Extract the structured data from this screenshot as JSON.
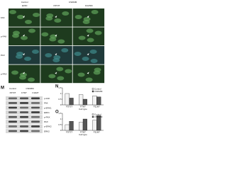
{
  "micro": {
    "groups": [
      "Control",
      "CSDMM"
    ],
    "columns": [
      "E15D",
      "F5T3T",
      "F11P3D"
    ],
    "rows": [
      "FAK",
      "p-FAK",
      "PAX",
      "p-PAX"
    ]
  },
  "blot": {
    "label": "M",
    "groups": [
      "Control",
      "CSDMM"
    ],
    "lanes": [
      "F5T3T",
      "F7M7",
      "F11M7"
    ],
    "rows": [
      "p-FAK",
      "FAK",
      "p-ERK1",
      "ERK1",
      "p-PAX",
      "PAX",
      "p-ERK2",
      "ERK2"
    ]
  },
  "chart_data": [
    {
      "type": "bar",
      "label": "N",
      "x_label": "Cell type",
      "categories": [
        "F5T3T",
        "F7M7",
        "F11M7"
      ],
      "series": [
        {
          "name": "Control",
          "color": "#f2f2f2",
          "values": [
            1,
            0.9,
            0.8
          ]
        },
        {
          "name": "CSDMM",
          "color": "#555555",
          "values": [
            0.6,
            0.5,
            0.7
          ]
        }
      ],
      "ylim": [
        0,
        1.5
      ],
      "yticks": [
        0,
        0.5,
        1,
        1.5
      ]
    },
    {
      "type": "bar",
      "label": "O",
      "x_label": "Cell type",
      "categories": [
        "F5T3T",
        "F7M7",
        "F11M7"
      ],
      "series": [
        {
          "name": "Control",
          "color": "#f2f2f2",
          "values": [
            0.5,
            0.7,
            0.9
          ]
        },
        {
          "name": "CSDMM",
          "color": "#555555",
          "values": [
            0.8,
            1,
            1.3
          ]
        }
      ],
      "ylim": [
        0,
        1.5
      ],
      "yticks": [
        0,
        0.5,
        1,
        1.5
      ]
    }
  ]
}
